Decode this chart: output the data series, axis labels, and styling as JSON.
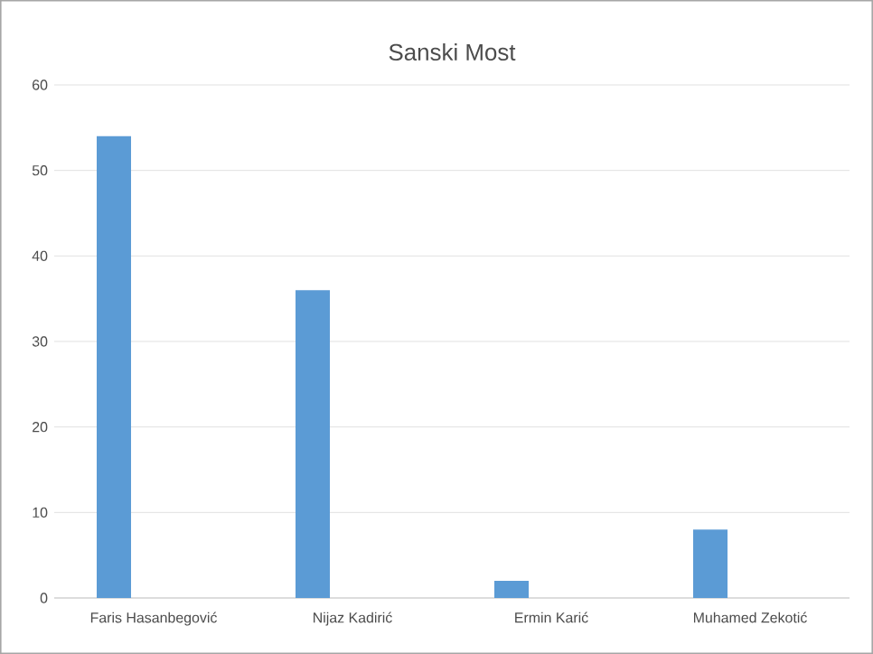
{
  "chart_data": {
    "type": "bar",
    "title": "Sanski Most",
    "categories": [
      "Faris Hasanbegović",
      "Nijaz Kadirić",
      "Ermin Karić",
      "Muhamed Zekotić"
    ],
    "values": [
      54,
      36,
      2,
      8
    ],
    "color": "#5b9bd5",
    "ylim": [
      0,
      60
    ],
    "yticks": [
      0,
      10,
      20,
      30,
      40,
      50,
      60
    ],
    "grid": "y"
  }
}
